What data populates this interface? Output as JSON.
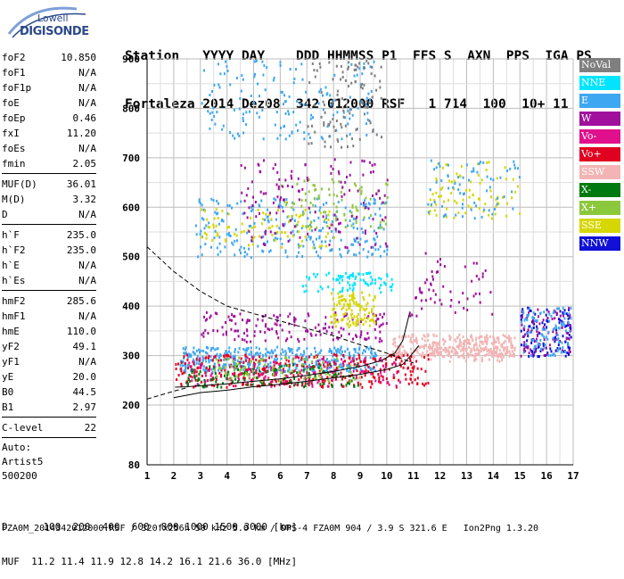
{
  "logo": {
    "line1": "Lowell",
    "line2": "DIGISONDE"
  },
  "header": {
    "labels": "Station   YYYY DAY    DDD HHMMSS P1  FFS S  AXN  PPS  IGA PS",
    "values": "Fortaleza 2014 Dez08  342 012000 RSF   1 714  100  10+ 11"
  },
  "params": {
    "group1": [
      {
        "name": "foF2",
        "value": "10.850"
      },
      {
        "name": "foF1",
        "value": "N/A"
      },
      {
        "name": "foF1p",
        "value": "N/A"
      },
      {
        "name": "foE",
        "value": "N/A"
      },
      {
        "name": "foEp",
        "value": "0.46"
      },
      {
        "name": "fxI",
        "value": "11.20"
      },
      {
        "name": "foEs",
        "value": "N/A"
      },
      {
        "name": "fmin",
        "value": "2.05"
      }
    ],
    "group2": [
      {
        "name": "MUF(D)",
        "value": "36.01"
      },
      {
        "name": "M(D)",
        "value": "3.32"
      },
      {
        "name": "D",
        "value": "N/A"
      }
    ],
    "group3": [
      {
        "name": "h`F",
        "value": "235.0"
      },
      {
        "name": "h`F2",
        "value": "235.0"
      },
      {
        "name": "h`E",
        "value": "N/A"
      },
      {
        "name": "h`Es",
        "value": "N/A"
      }
    ],
    "group4": [
      {
        "name": "hmF2",
        "value": "285.6"
      },
      {
        "name": "hmF1",
        "value": "N/A"
      },
      {
        "name": "hmE",
        "value": "110.0"
      },
      {
        "name": "yF2",
        "value": "49.1"
      },
      {
        "name": "yF1",
        "value": "N/A"
      },
      {
        "name": "yE",
        "value": "20.0"
      },
      {
        "name": "B0",
        "value": "44.5"
      },
      {
        "name": "B1",
        "value": "2.97"
      }
    ],
    "group5": [
      {
        "name": "C-level",
        "value": "22"
      }
    ],
    "auto": [
      "Auto:",
      "Artist5",
      "500200"
    ]
  },
  "legend": [
    {
      "label": "NoVal",
      "color": "#7f7f7f"
    },
    {
      "label": "NNE",
      "color": "#00e5ff"
    },
    {
      "label": "E",
      "color": "#3ea7f2"
    },
    {
      "label": "W",
      "color": "#a0109c"
    },
    {
      "label": "Vo-",
      "color": "#e0108c"
    },
    {
      "label": "Vo+",
      "color": "#e00020"
    },
    {
      "label": "SSW",
      "color": "#f2b4b4"
    },
    {
      "label": "X-",
      "color": "#007a10"
    },
    {
      "label": "X+",
      "color": "#8cc83c"
    },
    {
      "label": "SSE",
      "color": "#d6d600"
    },
    {
      "label": "NNW",
      "color": "#1010d6"
    }
  ],
  "footer": {
    "d_row": "D      100  200  400  600  800 1000 1500 3000 [km]",
    "muf_row": "MUF  11.2 11.4 11.9 12.8 14.2 16.1 21.6 36.0 [MHz]",
    "file_line": "FZA0M_2014342012000.RSF / 320fx256h 50 kHz 5.0 km / DPS-4 FZA0M 904 / 3.9 S 321.6 E   Ion2Png 1.3.20"
  },
  "chart_data": {
    "type": "scatter",
    "title": "",
    "xlabel": "",
    "ylabel": "",
    "xlim": [
      1,
      17
    ],
    "ylim": [
      80,
      900
    ],
    "x_ticks": [
      1,
      2,
      3,
      4,
      5,
      6,
      7,
      8,
      9,
      10,
      11,
      12,
      13,
      14,
      15,
      16,
      17
    ],
    "y_ticks": [
      80,
      200,
      300,
      400,
      500,
      600,
      700,
      800,
      900
    ],
    "grid": true,
    "legend_position": "right",
    "clusters": [
      {
        "series": "SSW",
        "x": [
          10.2,
          14.8
        ],
        "y": [
          300,
          345
        ],
        "count": 320
      },
      {
        "series": "E",
        "x": [
          2.2,
          9.6
        ],
        "y": [
          268,
          320
        ],
        "count": 420
      },
      {
        "series": "Vo+",
        "x": [
          2.0,
          11.6
        ],
        "y": [
          238,
          305
        ],
        "count": 360
      },
      {
        "series": "Vo-",
        "x": [
          2.5,
          10.5
        ],
        "y": [
          240,
          300
        ],
        "count": 160
      },
      {
        "series": "X-",
        "x": [
          2.4,
          9.0
        ],
        "y": [
          238,
          285
        ],
        "count": 120
      },
      {
        "series": "X+",
        "x": [
          3.5,
          9.0
        ],
        "y": [
          250,
          300
        ],
        "count": 90
      },
      {
        "series": "W",
        "x": [
          3.0,
          10.0
        ],
        "y": [
          330,
          390
        ],
        "count": 160
      },
      {
        "series": "SSE",
        "x": [
          7.8,
          9.6
        ],
        "y": [
          360,
          430
        ],
        "count": 120
      },
      {
        "series": "NNE",
        "x": [
          6.8,
          10.2
        ],
        "y": [
          430,
          470
        ],
        "count": 90
      },
      {
        "series": "E",
        "x": [
          2.8,
          10.0
        ],
        "y": [
          500,
          620
        ],
        "count": 260
      },
      {
        "series": "SSE",
        "x": [
          3.0,
          8.0
        ],
        "y": [
          520,
          600
        ],
        "count": 90
      },
      {
        "series": "X+",
        "x": [
          6.0,
          10.0
        ],
        "y": [
          560,
          660
        ],
        "count": 90
      },
      {
        "series": "W",
        "x": [
          4.5,
          10.0
        ],
        "y": [
          520,
          700
        ],
        "count": 140
      },
      {
        "series": "E",
        "x": [
          3.0,
          9.5
        ],
        "y": [
          740,
          900
        ],
        "count": 160
      },
      {
        "series": "NoVal",
        "x": [
          7.0,
          9.8
        ],
        "y": [
          720,
          900
        ],
        "count": 100
      },
      {
        "series": "NNW",
        "x": [
          15.0,
          16.9
        ],
        "y": [
          300,
          400
        ],
        "count": 110
      },
      {
        "series": "W",
        "x": [
          15.0,
          16.9
        ],
        "y": [
          300,
          400
        ],
        "count": 80
      },
      {
        "series": "E",
        "x": [
          15.0,
          16.9
        ],
        "y": [
          300,
          400
        ],
        "count": 90
      },
      {
        "series": "SSE",
        "x": [
          11.5,
          15.0
        ],
        "y": [
          580,
          700
        ],
        "count": 80
      },
      {
        "series": "E",
        "x": [
          11.5,
          15.0
        ],
        "y": [
          580,
          700
        ],
        "count": 70
      },
      {
        "series": "W",
        "x": [
          10.8,
          14.0
        ],
        "y": [
          380,
          510
        ],
        "count": 60
      },
      {
        "series": "SSW",
        "x": [
          11.5,
          14.8
        ],
        "y": [
          290,
          320
        ],
        "count": 80
      }
    ],
    "traces": [
      {
        "name": "virtual-height-trace",
        "style": "solid",
        "x": [
          2.05,
          2.5,
          3.0,
          4.0,
          5.0,
          6.0,
          7.0,
          8.0,
          9.0,
          9.8,
          10.3,
          10.6,
          10.85
        ],
        "y": [
          236,
          237,
          239,
          243,
          248,
          253,
          260,
          268,
          278,
          290,
          305,
          330,
          385
        ]
      },
      {
        "name": "lower-trace",
        "style": "solid",
        "x": [
          2.0,
          3.0,
          4.0,
          5.0,
          6.0,
          7.0,
          8.0,
          9.0,
          10.0,
          10.6,
          10.9,
          11.2
        ],
        "y": [
          215,
          225,
          230,
          237,
          242,
          248,
          255,
          262,
          272,
          282,
          300,
          320
        ]
      },
      {
        "name": "muf-curve",
        "style": "dashed",
        "x": [
          1.0,
          2.0,
          3.0,
          4.0,
          5.0,
          6.0,
          7.0,
          8.0,
          9.0,
          10.0,
          11.0
        ],
        "y": [
          520,
          470,
          430,
          400,
          385,
          370,
          355,
          340,
          322,
          305,
          285
        ]
      },
      {
        "name": "low-dashed-curve",
        "style": "dashed",
        "x": [
          1.0,
          1.5,
          2.0,
          2.5
        ],
        "y": [
          212,
          220,
          228,
          235
        ]
      }
    ]
  }
}
